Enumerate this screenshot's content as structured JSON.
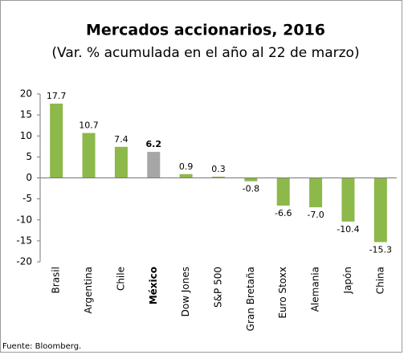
{
  "chart_data": {
    "type": "bar",
    "title": "Mercados accionarios, 2016",
    "subtitle": "(Var. % acumulada en el año al 22 de marzo)",
    "categories": [
      "Brasil",
      "Argentina",
      "Chile",
      "México",
      "Dow Jones",
      "S&P 500",
      "Gran Bretaña",
      "Euro Stoxx",
      "Alemania",
      "Japón",
      "China"
    ],
    "values": [
      17.7,
      10.7,
      7.4,
      6.2,
      0.9,
      0.3,
      -0.8,
      -6.6,
      -7.0,
      -10.4,
      -15.3
    ],
    "value_labels": [
      "17.7",
      "10.7",
      "7.4",
      "6.2",
      "0.9",
      "0.3",
      "-0.8",
      "-6.6",
      "-7.0",
      "-10.4",
      "-15.3"
    ],
    "color": "#8db84a",
    "highlight": "México",
    "highlight_color": "#a6a6a6",
    "ylim": [
      -20,
      20
    ],
    "yticks": [
      -20,
      -15,
      -10,
      -5,
      0,
      5,
      10,
      15,
      20
    ],
    "grid": false,
    "source": "Fuente: Bloomberg."
  }
}
